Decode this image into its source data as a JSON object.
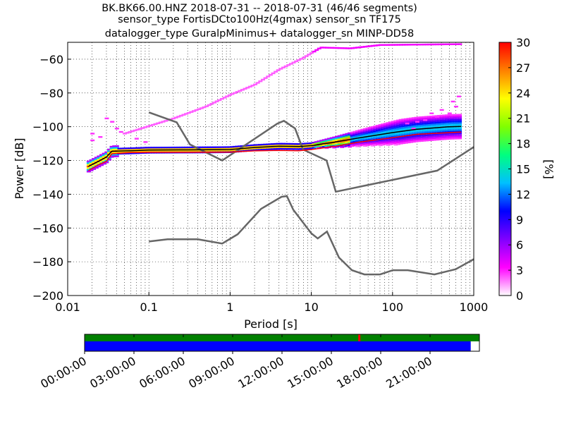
{
  "title_lines": [
    "BK.BK66.00.HNZ   2018-07-31 -- 2018-07-31  (46/46 segments)",
    "sensor_type FortisDCto100Hz(4gmax) sensor_sn TF175",
    "datalogger_type GuralpMinimus+ datalogger_sn MINP-DD58"
  ],
  "chart_data": {
    "type": "heatmap",
    "x_scale": "log",
    "xlim": [
      0.01,
      1000
    ],
    "ylim": [
      -200,
      -50
    ],
    "xlabel": "Period [s]",
    "ylabel": "Power [dB]",
    "x_ticks": [
      {
        "value": 0.01,
        "label": "0.01"
      },
      {
        "value": 0.1,
        "label": "0.1"
      },
      {
        "value": 1,
        "label": "1"
      },
      {
        "value": 10,
        "label": "10"
      },
      {
        "value": 100,
        "label": "100"
      },
      {
        "value": 1000,
        "label": "1000"
      }
    ],
    "y_ticks": [
      {
        "value": -60,
        "label": "−60"
      },
      {
        "value": -80,
        "label": "−80"
      },
      {
        "value": -100,
        "label": "−100"
      },
      {
        "value": -120,
        "label": "−120"
      },
      {
        "value": -140,
        "label": "−140"
      },
      {
        "value": -160,
        "label": "−160"
      },
      {
        "value": -180,
        "label": "−180"
      },
      {
        "value": -200,
        "label": "−200"
      }
    ],
    "grid": true,
    "colorbar": {
      "label": "[%]",
      "range": [
        0,
        30
      ],
      "ticks": [
        {
          "value": 30,
          "label": "30"
        },
        {
          "value": 27,
          "label": "27"
        },
        {
          "value": 24,
          "label": "24"
        },
        {
          "value": 21,
          "label": "21"
        },
        {
          "value": 18,
          "label": "18"
        },
        {
          "value": 15,
          "label": "15"
        },
        {
          "value": 12,
          "label": "12"
        },
        {
          "value": 9,
          "label": "9"
        },
        {
          "value": 6,
          "label": "6"
        },
        {
          "value": 3,
          "label": "3"
        },
        {
          "value": 0,
          "label": "0"
        }
      ],
      "colors": [
        "#ffffff",
        "#ff00ff",
        "#8000ff",
        "#0000ff",
        "#00c0ff",
        "#00ff80",
        "#80ff00",
        "#ffff00",
        "#ff8000",
        "#ff0000"
      ]
    },
    "model_curves": [
      {
        "name": "",
        "color": "#666666",
        "points": [
          [
            0.1,
            -91.5
          ],
          [
            0.22,
            -97.4
          ],
          [
            0.32,
            -110.5
          ],
          [
            0.8,
            -120
          ],
          [
            3.8,
            -98.2
          ],
          [
            4.6,
            -96.5
          ],
          [
            6.3,
            -101
          ],
          [
            7.9,
            -113.5
          ],
          [
            15.4,
            -120
          ],
          [
            20,
            -138.5
          ],
          [
            354.8,
            -126
          ],
          [
            1000,
            -112
          ]
        ]
      },
      {
        "name": "",
        "color": "#666666",
        "points": [
          [
            0.1,
            -168
          ],
          [
            0.17,
            -166.7
          ],
          [
            0.4,
            -166.7
          ],
          [
            0.8,
            -169.2
          ],
          [
            1.24,
            -163.7
          ],
          [
            2.4,
            -148.7
          ],
          [
            4.3,
            -141.5
          ],
          [
            5.0,
            -141.1
          ],
          [
            6.0,
            -149.2
          ],
          [
            10,
            -163.2
          ],
          [
            12,
            -166.2
          ],
          [
            15.6,
            -162.1
          ],
          [
            21.9,
            -177.5
          ],
          [
            31.6,
            -185
          ],
          [
            45,
            -187.5
          ],
          [
            70,
            -187.5
          ],
          [
            101,
            -185
          ],
          [
            154,
            -185
          ],
          [
            328,
            -187.5
          ],
          [
            600,
            -184.4
          ],
          [
            1000,
            -178.5
          ]
        ]
      }
    ],
    "series": [
      {
        "name": "",
        "color": "#000000",
        "points": [
          [
            0.018,
            -123.5
          ],
          [
            0.024,
            -120.5
          ],
          [
            0.03,
            -118
          ],
          [
            0.035,
            -114.5
          ],
          [
            0.06,
            -114.2
          ],
          [
            0.1,
            -113.8
          ],
          [
            0.3,
            -113.7
          ],
          [
            1.0,
            -113.5
          ],
          [
            2,
            -112.3
          ],
          [
            4,
            -111.5
          ],
          [
            7,
            -111.7
          ],
          [
            10,
            -111.2
          ],
          [
            20,
            -109
          ],
          [
            40,
            -106.5
          ],
          [
            100,
            -103.5
          ],
          [
            200,
            -101.5
          ],
          [
            500,
            -100
          ],
          [
            700,
            -99.8
          ]
        ]
      },
      {
        "name": "",
        "color": "#ff0000",
        "points": [
          [
            0.018,
            -126
          ],
          [
            0.024,
            -122.5
          ],
          [
            0.03,
            -120.5
          ],
          [
            0.035,
            -116
          ],
          [
            0.06,
            -115.3
          ],
          [
            0.1,
            -115.2
          ],
          [
            0.3,
            -115.2
          ],
          [
            1.0,
            -115
          ],
          [
            2,
            -114.3
          ],
          [
            4,
            -114
          ],
          [
            7,
            -114.2
          ],
          [
            10,
            -113.5
          ],
          [
            20,
            -111.5
          ],
          [
            40,
            -109
          ],
          [
            100,
            -106.5
          ],
          [
            200,
            -104.5
          ],
          [
            500,
            -103.5
          ],
          [
            700,
            -103.2
          ]
        ]
      }
    ]
  },
  "timeline": {
    "tick_labels": [
      "00:00:00",
      "03:00:00",
      "06:00:00",
      "09:00:00",
      "12:00:00",
      "15:00:00",
      "18:00:00",
      "21:00:00"
    ],
    "coverage_color": "#008000",
    "data_color": "#0000ff",
    "gap_color": "#ff0000",
    "data_coverage_fraction": 0.978,
    "gap_hours": 16.7
  }
}
